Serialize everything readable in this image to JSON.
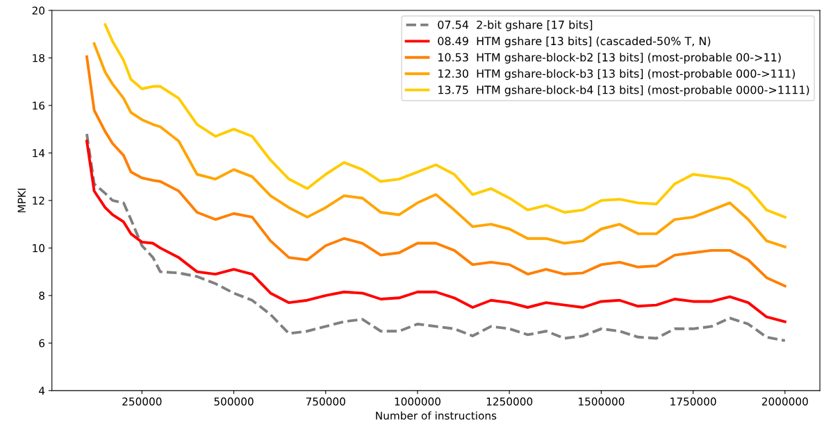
{
  "chart_data": {
    "type": "line",
    "xlabel": "Number of instructions",
    "ylabel": "MPKI",
    "x": [
      100000,
      120000,
      150000,
      170000,
      200000,
      220000,
      250000,
      280000,
      300000,
      350000,
      400000,
      450000,
      500000,
      550000,
      600000,
      650000,
      700000,
      750000,
      800000,
      850000,
      900000,
      950000,
      1000000,
      1050000,
      1100000,
      1150000,
      1200000,
      1250000,
      1300000,
      1350000,
      1400000,
      1450000,
      1500000,
      1550000,
      1600000,
      1650000,
      1700000,
      1750000,
      1800000,
      1850000,
      1900000,
      1950000,
      2000000
    ],
    "series": [
      {
        "name": "07.54  2-bit gshare [17 bits]",
        "color": "#808080",
        "line_style": "dashed",
        "values": [
          14.8,
          12.7,
          12.3,
          12.0,
          11.9,
          11.2,
          10.1,
          9.6,
          9.0,
          8.95,
          8.8,
          8.5,
          8.1,
          7.8,
          7.2,
          6.4,
          6.5,
          6.7,
          6.9,
          7.0,
          6.5,
          6.5,
          6.8,
          6.7,
          6.6,
          6.3,
          6.7,
          6.6,
          6.35,
          6.5,
          6.2,
          6.3,
          6.6,
          6.5,
          6.25,
          6.2,
          6.6,
          6.6,
          6.7,
          7.05,
          6.8,
          6.25,
          6.1
        ]
      },
      {
        "name": "08.49  HTM gshare [13 bits] (cascaded-50% T, N)",
        "color": "#ff0000",
        "values": [
          14.5,
          12.4,
          11.7,
          11.4,
          11.1,
          10.6,
          10.25,
          10.2,
          10.0,
          9.6,
          9.0,
          8.9,
          9.1,
          8.9,
          8.1,
          7.7,
          7.8,
          8.0,
          8.15,
          8.1,
          7.85,
          7.9,
          8.15,
          8.15,
          7.9,
          7.5,
          7.8,
          7.7,
          7.5,
          7.7,
          7.6,
          7.5,
          7.75,
          7.8,
          7.55,
          7.6,
          7.85,
          7.75,
          7.75,
          7.95,
          7.7,
          7.1,
          6.9
        ]
      },
      {
        "name": "10.53  HTM gshare-block-b2 [13 bits] (most-probable 00->11)",
        "color": "#ff8000",
        "values": [
          18.05,
          15.8,
          14.9,
          14.4,
          13.9,
          13.2,
          12.95,
          12.85,
          12.8,
          12.4,
          11.5,
          11.2,
          11.45,
          11.3,
          10.3,
          9.6,
          9.5,
          10.1,
          10.4,
          10.2,
          9.7,
          9.8,
          10.2,
          10.2,
          9.9,
          9.3,
          9.4,
          9.3,
          8.9,
          9.1,
          8.9,
          8.95,
          9.3,
          9.4,
          9.2,
          9.25,
          9.7,
          9.8,
          9.9,
          9.9,
          9.5,
          8.75,
          8.4
        ]
      },
      {
        "name": "12.30  HTM gshare-block-b3 [13 bits] (most-probable 000->111)",
        "color": "#ffa500",
        "values": [
          null,
          18.6,
          17.4,
          16.9,
          16.3,
          15.7,
          15.4,
          15.2,
          15.1,
          14.5,
          13.1,
          12.9,
          13.3,
          13.0,
          12.2,
          11.7,
          11.3,
          11.7,
          12.2,
          12.1,
          11.5,
          11.4,
          11.9,
          12.25,
          11.6,
          10.9,
          11.0,
          10.8,
          10.4,
          10.4,
          10.2,
          10.3,
          10.8,
          11.0,
          10.6,
          10.6,
          11.2,
          11.3,
          11.6,
          11.9,
          11.2,
          10.3,
          10.05
        ]
      },
      {
        "name": "13.75  HTM gshare-block-b4 [13 bits] (most-probable 0000->1111)",
        "color": "#ffcc00",
        "values": [
          null,
          null,
          19.4,
          18.7,
          17.9,
          17.1,
          16.7,
          16.8,
          16.8,
          16.3,
          15.2,
          14.7,
          15.0,
          14.7,
          13.7,
          12.9,
          12.5,
          13.1,
          13.6,
          13.3,
          12.8,
          12.9,
          13.2,
          13.5,
          13.1,
          12.25,
          12.5,
          12.1,
          11.6,
          11.8,
          11.5,
          11.6,
          12.0,
          12.05,
          11.9,
          11.85,
          12.7,
          13.1,
          13.0,
          12.9,
          12.5,
          11.6,
          11.3
        ]
      }
    ],
    "xlim": [
      5000,
      2095000
    ],
    "xticks": [
      250000,
      500000,
      750000,
      1000000,
      1250000,
      1500000,
      1750000,
      2000000
    ],
    "ylim": [
      4,
      20
    ],
    "yticks": [
      4,
      6,
      8,
      10,
      12,
      14,
      16,
      18,
      20
    ],
    "legend": "top right",
    "grid": false
  }
}
